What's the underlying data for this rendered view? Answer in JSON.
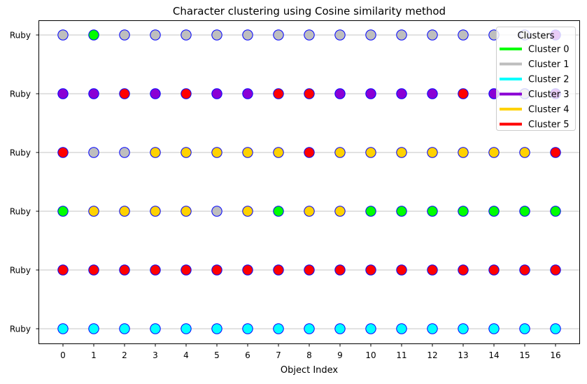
{
  "chart_data": {
    "type": "scatter",
    "title": "Character clustering using Cosine similarity method",
    "xlabel": "Object Index",
    "ylabel": "",
    "x": [
      0,
      1,
      2,
      3,
      4,
      5,
      6,
      7,
      8,
      9,
      10,
      11,
      12,
      13,
      14,
      15,
      16
    ],
    "rows": [
      {
        "label": "Ruby",
        "clusters": [
          1,
          0,
          1,
          1,
          1,
          1,
          1,
          1,
          1,
          1,
          1,
          1,
          1,
          1,
          1,
          1,
          3
        ]
      },
      {
        "label": "Ruby",
        "clusters": [
          3,
          3,
          5,
          3,
          5,
          3,
          3,
          5,
          5,
          3,
          3,
          3,
          3,
          5,
          3,
          1,
          3
        ]
      },
      {
        "label": "Ruby",
        "clusters": [
          5,
          1,
          1,
          4,
          4,
          4,
          4,
          4,
          5,
          4,
          4,
          4,
          4,
          4,
          4,
          4,
          5
        ]
      },
      {
        "label": "Ruby",
        "clusters": [
          0,
          4,
          4,
          4,
          4,
          1,
          4,
          0,
          4,
          4,
          0,
          0,
          0,
          0,
          0,
          0,
          0
        ]
      },
      {
        "label": "Ruby",
        "clusters": [
          5,
          5,
          5,
          5,
          5,
          5,
          5,
          5,
          5,
          5,
          5,
          5,
          5,
          5,
          5,
          5,
          5
        ]
      },
      {
        "label": "Ruby",
        "clusters": [
          2,
          2,
          2,
          2,
          2,
          2,
          2,
          2,
          2,
          2,
          2,
          2,
          2,
          2,
          2,
          2,
          2
        ]
      }
    ],
    "legend": {
      "title": "Clusters",
      "placement": "top-right",
      "entries": [
        {
          "label": "Cluster 0",
          "color": "#00ff00"
        },
        {
          "label": "Cluster 1",
          "color": "#bebebe"
        },
        {
          "label": "Cluster 2",
          "color": "#00ffff"
        },
        {
          "label": "Cluster 3",
          "color": "#8a00d4"
        },
        {
          "label": "Cluster 4",
          "color": "#ffd200"
        },
        {
          "label": "Cluster 5",
          "color": "#ff0000"
        }
      ]
    },
    "marker_edge_color": "#0000ff",
    "grid": "horizontal"
  }
}
